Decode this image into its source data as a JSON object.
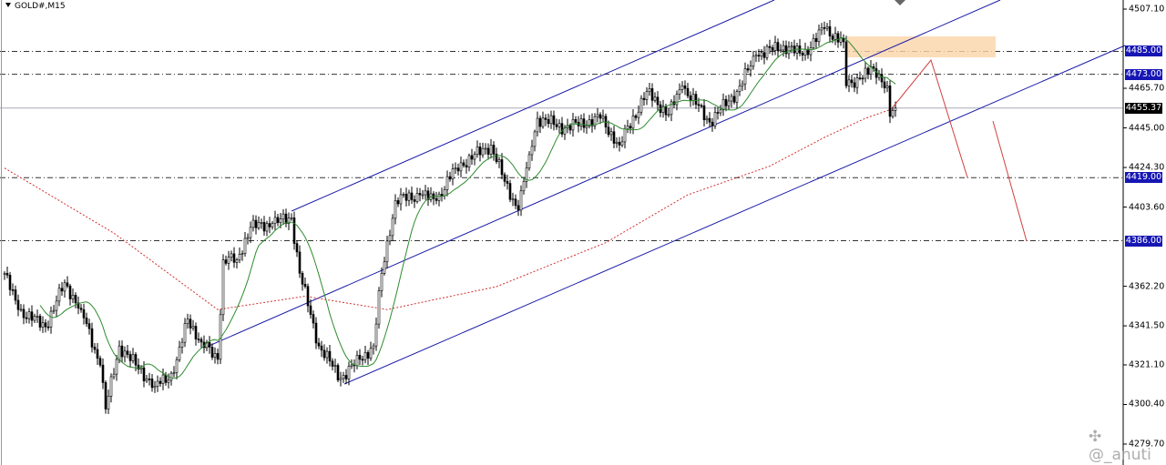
{
  "chart_data": {
    "type": "candlestick",
    "title": "GOLD#,M15",
    "symbol": "GOLD#",
    "timeframe": "M15",
    "ylim": [
      4279.7,
      4507.1
    ],
    "y_ticks": [
      "4507.10",
      "4465.70",
      "4445.00",
      "4424.30",
      "4403.60",
      "4362.20",
      "4341.50",
      "4321.10",
      "4300.40",
      "4279.70"
    ],
    "bid": {
      "price": 4455.37,
      "label": "4455.37"
    },
    "levels": [
      {
        "price": 4485.0,
        "label": "4485.00"
      },
      {
        "price": 4473.0,
        "label": "4473.00"
      },
      {
        "price": 4419.0,
        "label": "4419.00"
      },
      {
        "price": 4386.0,
        "label": "4386.00"
      }
    ],
    "close_keypoints": [
      [
        0,
        4369
      ],
      [
        5,
        4350
      ],
      [
        15,
        4341
      ],
      [
        22,
        4364
      ],
      [
        28,
        4350
      ],
      [
        35,
        4321
      ],
      [
        37,
        4298
      ],
      [
        42,
        4331
      ],
      [
        48,
        4321
      ],
      [
        55,
        4310
      ],
      [
        62,
        4317
      ],
      [
        67,
        4345
      ],
      [
        72,
        4333
      ],
      [
        78,
        4324
      ],
      [
        80,
        4376
      ],
      [
        85,
        4376
      ],
      [
        90,
        4393
      ],
      [
        98,
        4395
      ],
      [
        105,
        4398
      ],
      [
        108,
        4369
      ],
      [
        115,
        4331
      ],
      [
        123,
        4314
      ],
      [
        130,
        4324
      ],
      [
        135,
        4331
      ],
      [
        138,
        4369
      ],
      [
        143,
        4407
      ],
      [
        152,
        4410
      ],
      [
        158,
        4407
      ],
      [
        165,
        4424
      ],
      [
        178,
        4436
      ],
      [
        183,
        4417
      ],
      [
        188,
        4402
      ],
      [
        192,
        4431
      ],
      [
        195,
        4450
      ],
      [
        205,
        4445
      ],
      [
        218,
        4450
      ],
      [
        225,
        4436
      ],
      [
        235,
        4464
      ],
      [
        243,
        4452
      ],
      [
        248,
        4467
      ],
      [
        258,
        4448
      ],
      [
        268,
        4464
      ],
      [
        275,
        4483
      ],
      [
        285,
        4488
      ],
      [
        292,
        4483
      ],
      [
        300,
        4497
      ],
      [
        307,
        4490
      ],
      [
        308,
        4467
      ],
      [
        313,
        4471
      ],
      [
        318,
        4476
      ],
      [
        323,
        4467
      ],
      [
        324,
        4451
      ],
      [
        326,
        4455.37
      ]
    ],
    "slow_ma_keypoints": [
      [
        0,
        4424
      ],
      [
        40,
        4390
      ],
      [
        78,
        4350
      ],
      [
        110,
        4357
      ],
      [
        140,
        4350
      ],
      [
        180,
        4362
      ],
      [
        220,
        4385
      ],
      [
        250,
        4410
      ],
      [
        280,
        4425
      ],
      [
        300,
        4440
      ],
      [
        315,
        4450
      ],
      [
        325,
        4455
      ]
    ],
    "colors": {
      "channel": "#1a1aa8",
      "fast_ma": "#2e8b2e",
      "slow_ma": "#d03030",
      "projection": "#d04040",
      "zone": "#fbd5a8",
      "level_label_bg": "#1616b4"
    }
  },
  "watermark": "@_anuti"
}
